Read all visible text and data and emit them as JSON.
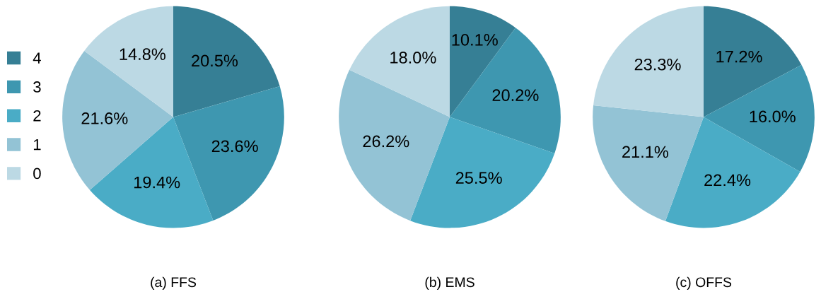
{
  "chart_data": [
    {
      "type": "pie",
      "title": "(a) FFS",
      "categories": [
        "4",
        "3",
        "2",
        "1",
        "0"
      ],
      "values": [
        20.5,
        23.6,
        19.4,
        21.6,
        14.8
      ],
      "value_labels": [
        "20.5%",
        "23.6%",
        "19.4%",
        "21.6%",
        "14.8%"
      ],
      "colors": [
        "#367f95",
        "#3e97b0",
        "#4aacc6",
        "#93c3d5",
        "#bcd9e4"
      ],
      "legend": "left"
    },
    {
      "type": "pie",
      "title": "(b) EMS",
      "categories": [
        null,
        null,
        null,
        null,
        null
      ],
      "values": [
        10.1,
        20.2,
        25.5,
        26.2,
        18.0
      ],
      "value_labels": [
        "10.1%",
        "20.2%",
        "25.5%",
        "26.2%",
        "18.0%"
      ],
      "colors": [
        "#367f95",
        "#3e97b0",
        "#4aacc6",
        "#93c3d5",
        "#bcd9e4"
      ]
    },
    {
      "type": "pie",
      "title": "(c) OFFS",
      "categories": [
        null,
        null,
        null,
        null,
        null
      ],
      "values": [
        17.2,
        16.0,
        22.4,
        21.1,
        23.3
      ],
      "value_labels": [
        "17.2%",
        "16.0%",
        "22.4%",
        "21.1%",
        "23.3%"
      ],
      "colors": [
        "#367f95",
        "#3e97b0",
        "#4aacc6",
        "#93c3d5",
        "#bcd9e4"
      ]
    }
  ]
}
